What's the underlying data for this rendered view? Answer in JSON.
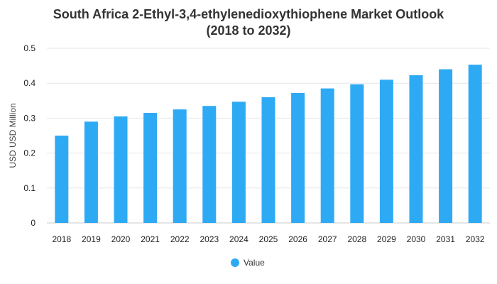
{
  "chart_data": {
    "type": "bar",
    "title_line1": "South Africa 2-Ethyl-3,4-ethylenedioxythiophene Market Outlook",
    "title_line2": "(2018 to 2032)",
    "xlabel": "",
    "ylabel": "USD USD Million",
    "ylim": [
      0,
      0.5
    ],
    "yticks": [
      0,
      0.1,
      0.2,
      0.3,
      0.4,
      0.5
    ],
    "ytick_labels": [
      "0",
      "0.1",
      "0.2",
      "0.3",
      "0.4",
      "0.5"
    ],
    "grid": true,
    "legend_position": "bottom",
    "categories": [
      "2018",
      "2019",
      "2020",
      "2021",
      "2022",
      "2023",
      "2024",
      "2025",
      "2026",
      "2027",
      "2028",
      "2029",
      "2030",
      "2031",
      "2032"
    ],
    "series": [
      {
        "name": "Value",
        "color": "#2eaaf5",
        "values": [
          0.25,
          0.29,
          0.305,
          0.315,
          0.325,
          0.335,
          0.347,
          0.36,
          0.372,
          0.385,
          0.397,
          0.41,
          0.423,
          0.44,
          0.453
        ]
      }
    ]
  }
}
